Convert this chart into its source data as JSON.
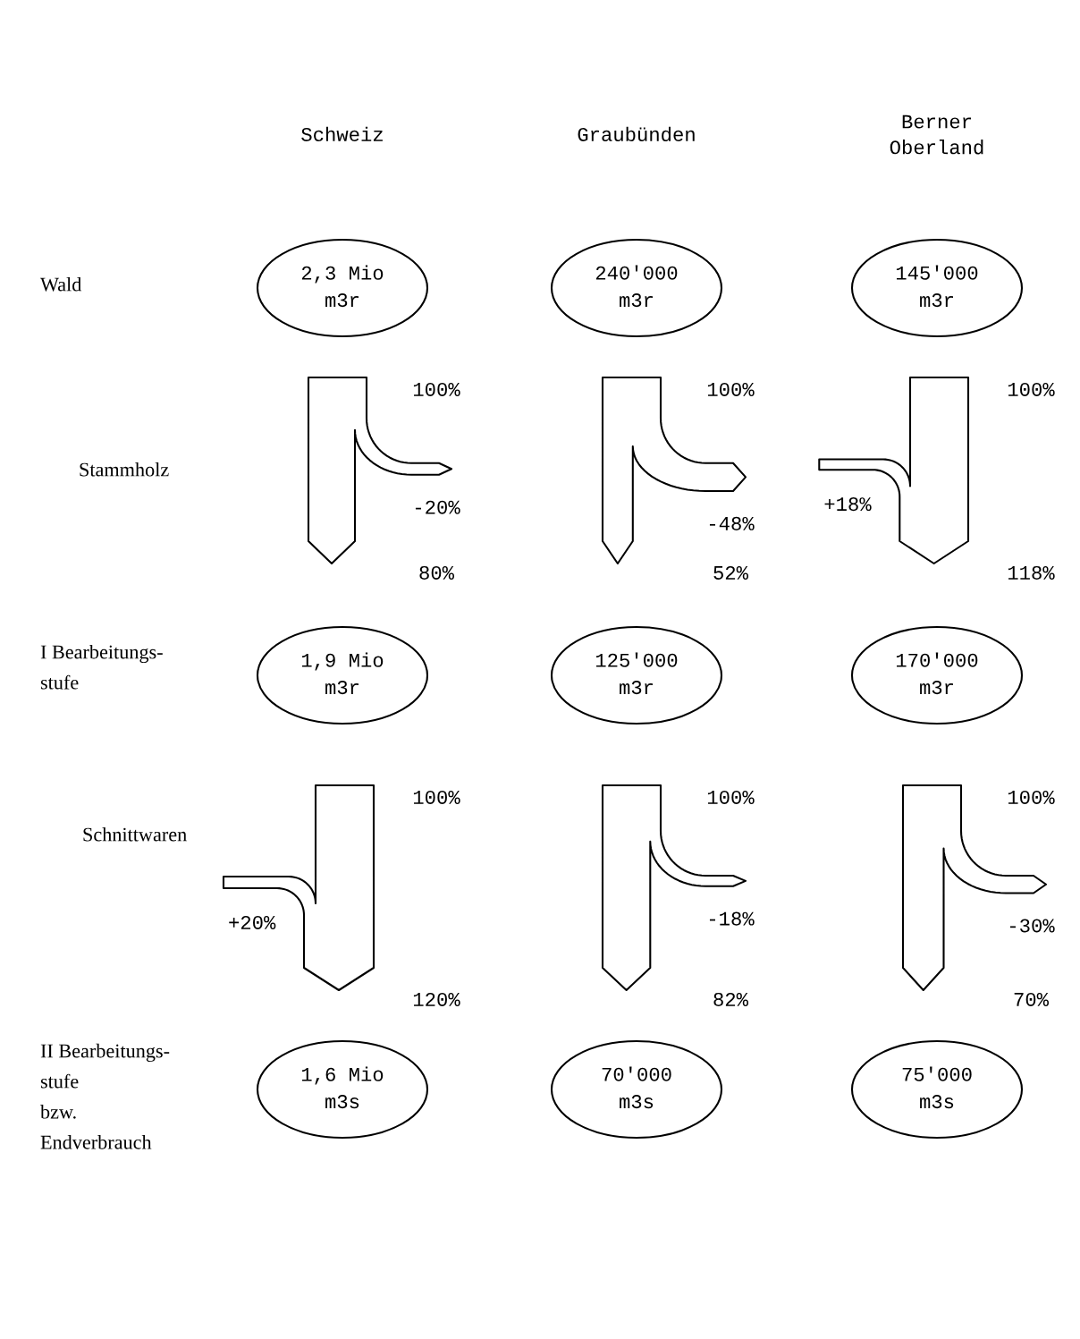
{
  "chart_data": {
    "type": "other",
    "categories": [
      "Schweiz",
      "Graubünden",
      "Berner\nOberland"
    ],
    "y_categories": [
      "Wald",
      "Stammholz",
      "I Bearbeitungs-\nstufe",
      "Schnittwaren",
      "II Bearbeitungs-\nstufe\nbzw.\nEndverbrauch"
    ],
    "cell_labels": [
      [
        "2,3 Mio\nm3r",
        "240'000\nm3r",
        "145'000\nm3r"
      ],
      [
        "1,9 Mio\nm3r",
        "125'000\nm3r",
        "170'000\nm3r"
      ],
      [
        "1,6 Mio\nm3s",
        "70'000\nm3s",
        "75'000\nm3s"
      ]
    ],
    "series": [
      {
        "values": [
          100,
          100,
          100
        ],
        "value_labels": [
          "100%",
          "100%",
          "100%"
        ]
      },
      {
        "values": [
          -20,
          -48,
          18
        ],
        "value_labels": [
          "-20%",
          "-48%",
          "+18%"
        ]
      },
      {
        "values": [
          80,
          52,
          118
        ],
        "value_labels": [
          "80%",
          "52%",
          "118%"
        ]
      },
      {
        "values": [
          100,
          100,
          100
        ],
        "value_labels": [
          "100%",
          "100%",
          "100%"
        ]
      },
      {
        "values": [
          20,
          -18,
          -30
        ],
        "value_labels": [
          "+20%",
          "-18%",
          "-30%"
        ]
      },
      {
        "values": [
          120,
          82,
          70
        ],
        "value_labels": [
          "120%",
          "82%",
          "70%"
        ]
      }
    ]
  }
}
